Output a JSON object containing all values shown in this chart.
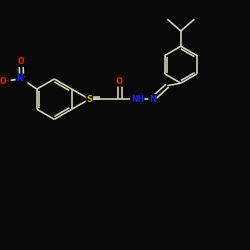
{
  "background_color": "#080808",
  "bond_color": "#d8d8c0",
  "atom_colors": {
    "O": "#ff2000",
    "N": "#2222ee",
    "S": "#ccaa00",
    "C": "#d8d8c0",
    "H": "#d8d8c0"
  },
  "figsize": [
    2.5,
    2.5
  ],
  "dpi": 100,
  "xlim": [
    0,
    10
  ],
  "ylim": [
    0,
    10
  ]
}
